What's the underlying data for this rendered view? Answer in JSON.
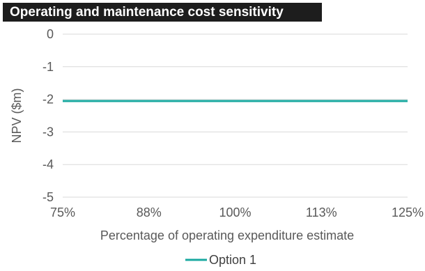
{
  "chart_data": {
    "type": "line",
    "title": "Operating and maintenance cost sensitivity",
    "xlabel": "Percentage of operating expenditure estimate",
    "ylabel": "NPV ($m)",
    "x_tick_labels": [
      "75%",
      "88%",
      "100%",
      "113%",
      "125%"
    ],
    "y_ticks": [
      0,
      -1,
      -2,
      -3,
      -4,
      -5
    ],
    "ylim": [
      -5,
      0
    ],
    "grid": "horizontal",
    "legend_position": "bottom",
    "series": [
      {
        "name": "Option 1",
        "color": "#1aa9a0",
        "x": [
          "75%",
          "88%",
          "100%",
          "113%",
          "125%"
        ],
        "values": [
          -2.05,
          -2.05,
          -2.05,
          -2.05,
          -2.05
        ]
      }
    ]
  }
}
